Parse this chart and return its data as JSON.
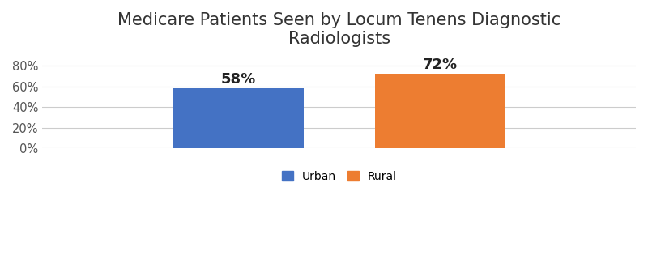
{
  "title": "Medicare Patients Seen by Locum Tenens Diagnostic\nRadiologists",
  "categories": [
    "Urban",
    "Rural"
  ],
  "values": [
    58,
    72
  ],
  "bar_colors": [
    "#4472C4",
    "#ED7D31"
  ],
  "bar_labels": [
    "58%",
    "72%"
  ],
  "ylim": [
    0,
    90
  ],
  "yticks": [
    0,
    20,
    40,
    60,
    80
  ],
  "ytick_labels": [
    "0%",
    "20%",
    "40%",
    "60%",
    "80%"
  ],
  "title_fontsize": 15,
  "label_fontsize": 13,
  "legend_fontsize": 10,
  "background_color": "#ffffff",
  "grid_color": "#cccccc",
  "bar_width": 0.22,
  "x_positions": [
    0.33,
    0.67
  ]
}
